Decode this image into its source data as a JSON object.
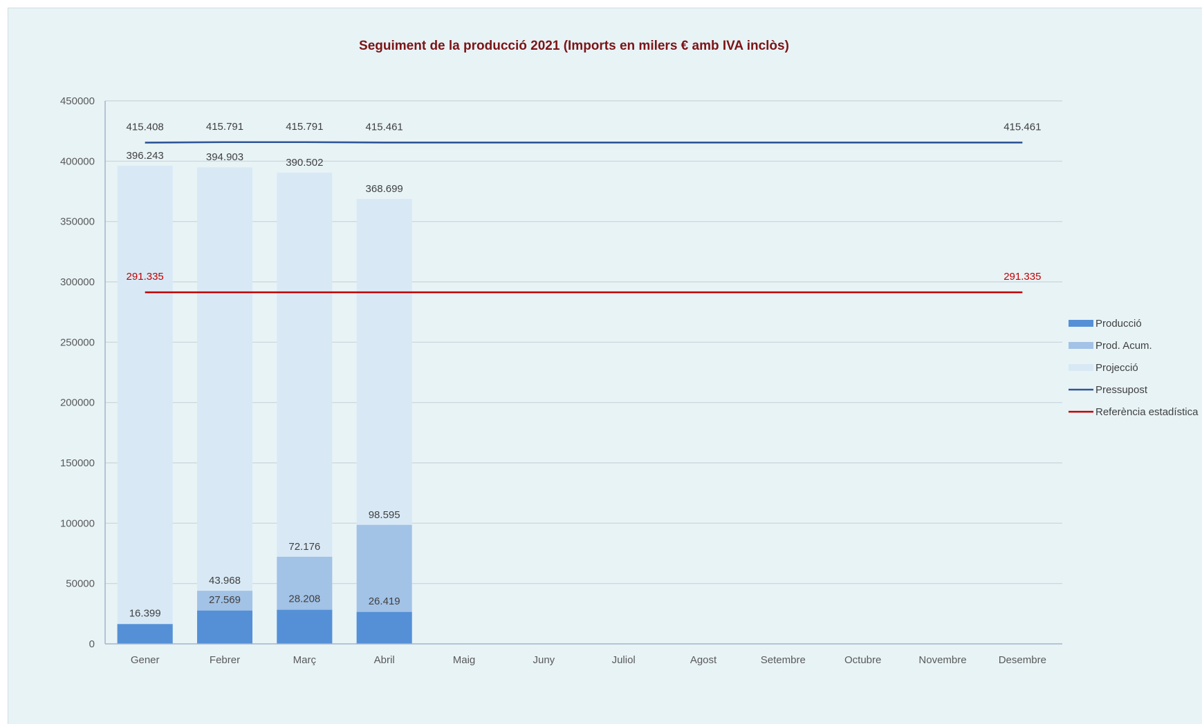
{
  "chart_data": {
    "type": "bar",
    "title": "Seguiment de la producció 2021 (Imports en milers € amb IVA inclòs)",
    "xlabel": "",
    "ylabel": "",
    "ylim": [
      0,
      450000
    ],
    "yticks": [
      0,
      50000,
      100000,
      150000,
      200000,
      250000,
      300000,
      350000,
      400000,
      450000
    ],
    "ytick_labels": [
      "0",
      "50000",
      "100000",
      "150000",
      "200000",
      "250000",
      "300000",
      "350000",
      "400000",
      "450000"
    ],
    "categories": [
      "Gener",
      "Febrer",
      "Març",
      "Abril",
      "Maig",
      "Juny",
      "Juliol",
      "Agost",
      "Setembre",
      "Octubre",
      "Novembre",
      "Desembre"
    ],
    "grid": true,
    "legend_position": "right",
    "series": [
      {
        "name": "Producció",
        "kind": "bar",
        "color": "#5590d6",
        "values": [
          16399,
          27569,
          28208,
          26419,
          null,
          null,
          null,
          null,
          null,
          null,
          null,
          null
        ],
        "labels": [
          "16.399",
          "27.569",
          "28.208",
          "26.419",
          "",
          "",
          "",
          "",
          "",
          "",
          "",
          ""
        ]
      },
      {
        "name": "Prod. Acum.",
        "kind": "bar",
        "color": "#a2c2e6",
        "values": [
          16399,
          43968,
          72176,
          98595,
          null,
          null,
          null,
          null,
          null,
          null,
          null,
          null
        ],
        "labels": [
          "",
          "43.968",
          "72.176",
          "98.595",
          "",
          "",
          "",
          "",
          "",
          "",
          "",
          ""
        ]
      },
      {
        "name": "Projecció",
        "kind": "bar",
        "color": "#d8e9f5",
        "values": [
          396243,
          394903,
          390502,
          368699,
          null,
          null,
          null,
          null,
          null,
          null,
          null,
          null
        ],
        "labels": [
          "396.243",
          "394.903",
          "390.502",
          "368.699",
          "",
          "",
          "",
          "",
          "",
          "",
          "",
          ""
        ]
      },
      {
        "name": "Pressupost",
        "kind": "line",
        "color": "#2e5597",
        "values": [
          415408,
          415791,
          415791,
          415461,
          415461,
          415461,
          415461,
          415461,
          415461,
          415461,
          415461,
          415461
        ],
        "labels": [
          "415.408",
          "415.791",
          "415.791",
          "415.461",
          "",
          "",
          "",
          "",
          "",
          "",
          "",
          "415.461"
        ]
      },
      {
        "name": "Referència estadística",
        "kind": "line",
        "color": "#c00000",
        "values": [
          291335,
          291335,
          291335,
          291335,
          291335,
          291335,
          291335,
          291335,
          291335,
          291335,
          291335,
          291335
        ],
        "labels": [
          "291.335",
          "",
          "",
          "",
          "",
          "",
          "",
          "",
          "",
          "",
          "",
          "291.335"
        ]
      }
    ]
  },
  "colors": {
    "background": "#e8f3f6",
    "title": "#7b1416",
    "gridline": "#c9d4db",
    "axis": "#9fb4c9",
    "tick_text": "#595959",
    "data_label": "#404040",
    "reference_label": "#c00000"
  }
}
